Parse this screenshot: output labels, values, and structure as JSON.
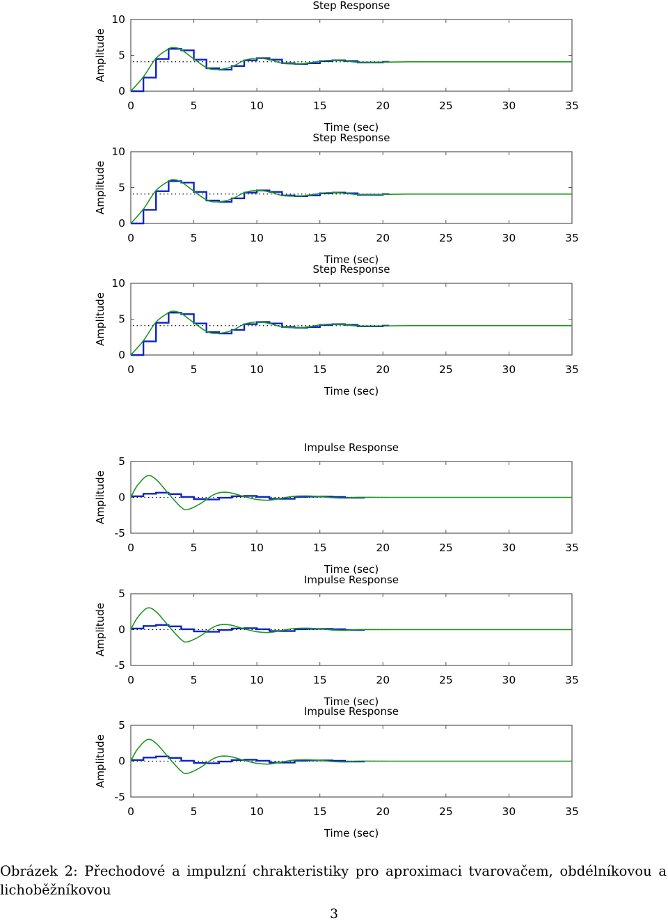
{
  "chart_data": [
    {
      "type": "line",
      "title": "Step Response",
      "xlabel": "Time (sec)",
      "ylabel": "Amplitude",
      "xlim": [
        0,
        35
      ],
      "ylim": [
        0,
        10
      ],
      "xticks": [
        "0",
        "5",
        "10",
        "15",
        "20",
        "25",
        "30",
        "35"
      ],
      "yticks": [
        "0",
        "5",
        "10"
      ],
      "steady_state": 4.1,
      "series": [
        {
          "style": "staircase",
          "color": "#0b24c8",
          "x": [
            0,
            1,
            2,
            3,
            4,
            5,
            6,
            7,
            8,
            9,
            10,
            11,
            12,
            13,
            14,
            15,
            16,
            17,
            18,
            19,
            20,
            20.5
          ],
          "y": [
            0,
            1.9,
            4.5,
            5.9,
            5.7,
            4.4,
            3.2,
            3.0,
            3.5,
            4.3,
            4.6,
            4.4,
            3.9,
            3.8,
            3.9,
            4.2,
            4.3,
            4.2,
            4.0,
            4.0,
            4.1,
            4.1
          ]
        },
        {
          "style": "line",
          "color": "#1e961e",
          "x": [
            0,
            1,
            2,
            3,
            3.4,
            4,
            5,
            6,
            6.8,
            8,
            9,
            10,
            11,
            12,
            13,
            14,
            15,
            16,
            17,
            18,
            20,
            22,
            25,
            30,
            35
          ],
          "y": [
            0,
            2.0,
            4.6,
            5.9,
            6.1,
            5.8,
            4.5,
            3.3,
            3.0,
            3.4,
            4.3,
            4.6,
            4.4,
            3.9,
            3.8,
            3.9,
            4.2,
            4.3,
            4.2,
            4.05,
            4.05,
            4.1,
            4.1,
            4.1,
            4.1
          ]
        }
      ]
    },
    {
      "type": "line",
      "title": "Step Response",
      "xlabel": "Time (sec)",
      "ylabel": "Amplitude",
      "xlim": [
        0,
        35
      ],
      "ylim": [
        0,
        10
      ],
      "xticks": [
        "0",
        "5",
        "10",
        "15",
        "20",
        "25",
        "30",
        "35"
      ],
      "yticks": [
        "0",
        "5",
        "10"
      ],
      "steady_state": 4.1,
      "series": [
        {
          "style": "staircase",
          "color": "#0b24c8",
          "x": [
            0,
            1,
            2,
            3,
            4,
            5,
            6,
            7,
            8,
            9,
            10,
            11,
            12,
            13,
            14,
            15,
            16,
            17,
            18,
            19,
            20,
            20.5
          ],
          "y": [
            0,
            1.9,
            4.5,
            5.9,
            5.7,
            4.4,
            3.2,
            3.0,
            3.5,
            4.3,
            4.6,
            4.4,
            3.9,
            3.8,
            3.9,
            4.2,
            4.3,
            4.2,
            4.0,
            4.0,
            4.1,
            4.1
          ]
        },
        {
          "style": "line",
          "color": "#1e961e",
          "x": [
            0,
            1,
            2,
            3,
            3.4,
            4,
            5,
            6,
            6.8,
            8,
            9,
            10,
            11,
            12,
            13,
            14,
            15,
            16,
            17,
            18,
            20,
            22,
            25,
            30,
            35
          ],
          "y": [
            0,
            2.0,
            4.6,
            5.9,
            6.1,
            5.8,
            4.5,
            3.3,
            3.0,
            3.4,
            4.3,
            4.6,
            4.4,
            3.9,
            3.8,
            3.9,
            4.2,
            4.3,
            4.2,
            4.05,
            4.05,
            4.1,
            4.1,
            4.1,
            4.1
          ]
        }
      ]
    },
    {
      "type": "line",
      "title": "Step Response",
      "xlabel": "Time (sec)",
      "ylabel": "Amplitude",
      "xlim": [
        0,
        35
      ],
      "ylim": [
        0,
        10
      ],
      "xticks": [
        "0",
        "5",
        "10",
        "15",
        "20",
        "25",
        "30",
        "35"
      ],
      "yticks": [
        "0",
        "5",
        "10"
      ],
      "steady_state": 4.1,
      "series": [
        {
          "style": "staircase",
          "color": "#0b24c8",
          "x": [
            0,
            1,
            2,
            3,
            4,
            5,
            6,
            7,
            8,
            9,
            10,
            11,
            12,
            13,
            14,
            15,
            16,
            17,
            18,
            19,
            20,
            20.5
          ],
          "y": [
            0,
            1.9,
            4.5,
            5.9,
            5.7,
            4.4,
            3.2,
            3.0,
            3.5,
            4.3,
            4.6,
            4.4,
            3.9,
            3.8,
            3.9,
            4.2,
            4.3,
            4.2,
            4.0,
            4.0,
            4.1,
            4.1
          ]
        },
        {
          "style": "line",
          "color": "#1e961e",
          "x": [
            0,
            1,
            2,
            3,
            3.4,
            4,
            5,
            6,
            6.8,
            8,
            9,
            10,
            11,
            12,
            13,
            14,
            15,
            16,
            17,
            18,
            20,
            22,
            25,
            30,
            35
          ],
          "y": [
            0,
            2.0,
            4.6,
            5.9,
            6.1,
            5.8,
            4.5,
            3.3,
            3.0,
            3.4,
            4.3,
            4.6,
            4.4,
            3.9,
            3.8,
            3.9,
            4.2,
            4.3,
            4.2,
            4.05,
            4.05,
            4.1,
            4.1,
            4.1,
            4.1
          ]
        }
      ]
    },
    {
      "type": "line",
      "title": "Impulse Response",
      "xlabel": "Time (sec)",
      "ylabel": "Amplitude",
      "xlim": [
        0,
        35
      ],
      "ylim": [
        -5,
        5
      ],
      "xticks": [
        "0",
        "5",
        "10",
        "15",
        "20",
        "25",
        "30",
        "35"
      ],
      "yticks": [
        "-5",
        "0",
        "5"
      ],
      "steady_state": 0,
      "series": [
        {
          "style": "staircase",
          "color": "#0b24c8",
          "x": [
            0,
            1,
            2,
            3,
            4,
            5,
            6,
            7,
            8,
            9,
            10,
            11,
            12,
            13,
            14,
            15,
            16,
            17,
            18,
            18.5
          ],
          "y": [
            0.15,
            0.5,
            0.65,
            0.45,
            0.05,
            -0.25,
            -0.3,
            -0.05,
            0.15,
            0.2,
            0.05,
            -0.2,
            -0.2,
            0.05,
            0.1,
            0.1,
            0.05,
            -0.05,
            -0.05,
            0
          ]
        },
        {
          "style": "line",
          "color": "#1e961e",
          "x": [
            0,
            0.5,
            1.3,
            2,
            3,
            4,
            4.5,
            5.5,
            6.5,
            7.2,
            8,
            9,
            10,
            11,
            12,
            13,
            14,
            15,
            16,
            17,
            18,
            20,
            25,
            30,
            35
          ],
          "y": [
            0,
            1.6,
            3.0,
            2.5,
            0.5,
            -1.4,
            -1.7,
            -0.9,
            0.3,
            0.7,
            0.6,
            0.1,
            -0.3,
            -0.4,
            -0.1,
            0.15,
            0.2,
            0.1,
            -0.05,
            -0.1,
            0,
            0,
            0,
            0,
            0
          ]
        }
      ]
    },
    {
      "type": "line",
      "title": "Impulse Response",
      "xlabel": "Time (sec)",
      "ylabel": "Amplitude",
      "xlim": [
        0,
        35
      ],
      "ylim": [
        -5,
        5
      ],
      "xticks": [
        "0",
        "5",
        "10",
        "15",
        "20",
        "25",
        "30",
        "35"
      ],
      "yticks": [
        "-5",
        "0",
        "5"
      ],
      "steady_state": 0,
      "series": [
        {
          "style": "staircase",
          "color": "#0b24c8",
          "x": [
            0,
            1,
            2,
            3,
            4,
            5,
            6,
            7,
            8,
            9,
            10,
            11,
            12,
            13,
            14,
            15,
            16,
            17,
            18,
            18.5
          ],
          "y": [
            0.15,
            0.5,
            0.65,
            0.45,
            0.05,
            -0.25,
            -0.3,
            -0.05,
            0.15,
            0.2,
            0.05,
            -0.2,
            -0.2,
            0.05,
            0.1,
            0.1,
            0.05,
            -0.05,
            -0.05,
            0
          ]
        },
        {
          "style": "line",
          "color": "#1e961e",
          "x": [
            0,
            0.5,
            1.3,
            2,
            3,
            4,
            4.5,
            5.5,
            6.5,
            7.2,
            8,
            9,
            10,
            11,
            12,
            13,
            14,
            15,
            16,
            17,
            18,
            20,
            25,
            30,
            35
          ],
          "y": [
            0,
            1.6,
            3.0,
            2.5,
            0.5,
            -1.4,
            -1.7,
            -0.9,
            0.3,
            0.7,
            0.6,
            0.1,
            -0.3,
            -0.4,
            -0.1,
            0.15,
            0.2,
            0.1,
            -0.05,
            -0.1,
            0,
            0,
            0,
            0,
            0
          ]
        }
      ]
    },
    {
      "type": "line",
      "title": "Impulse Response",
      "xlabel": "Time (sec)",
      "ylabel": "Amplitude",
      "xlim": [
        0,
        35
      ],
      "ylim": [
        -5,
        5
      ],
      "xticks": [
        "0",
        "5",
        "10",
        "15",
        "20",
        "25",
        "30",
        "35"
      ],
      "yticks": [
        "-5",
        "0",
        "5"
      ],
      "steady_state": 0,
      "series": [
        {
          "style": "staircase",
          "color": "#0b24c8",
          "x": [
            0,
            1,
            2,
            3,
            4,
            5,
            6,
            7,
            8,
            9,
            10,
            11,
            12,
            13,
            14,
            15,
            16,
            17,
            18,
            18.5
          ],
          "y": [
            0.15,
            0.5,
            0.65,
            0.45,
            0.05,
            -0.25,
            -0.3,
            -0.05,
            0.15,
            0.2,
            0.05,
            -0.2,
            -0.2,
            0.05,
            0.1,
            0.1,
            0.05,
            -0.05,
            -0.05,
            0
          ]
        },
        {
          "style": "line",
          "color": "#1e961e",
          "x": [
            0,
            0.5,
            1.3,
            2,
            3,
            4,
            4.5,
            5.5,
            6.5,
            7.2,
            8,
            9,
            10,
            11,
            12,
            13,
            14,
            15,
            16,
            17,
            18,
            20,
            25,
            30,
            35
          ],
          "y": [
            0,
            1.6,
            3.0,
            2.5,
            0.5,
            -1.4,
            -1.7,
            -0.9,
            0.3,
            0.7,
            0.6,
            0.1,
            -0.3,
            -0.4,
            -0.1,
            0.15,
            0.2,
            0.1,
            -0.05,
            -0.1,
            0,
            0,
            0,
            0,
            0
          ]
        }
      ]
    }
  ],
  "caption": "Obrázek 2: Přechodové a impulzní chrakteristiky pro aproximaci tvarovačem, obdélníkovou a lichoběžníkovou",
  "page_number": "3"
}
